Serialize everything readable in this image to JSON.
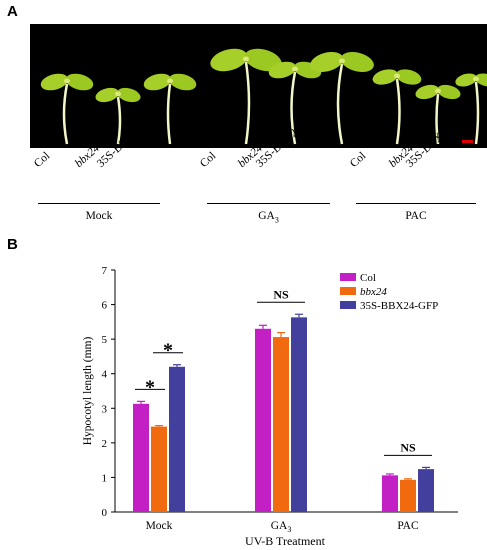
{
  "panel_a": {
    "letter": "A",
    "groups": [
      {
        "treatment": "Mock",
        "treatment_sub": "",
        "genotypes": [
          {
            "label": "Col",
            "italic": false
          },
          {
            "label": "bbx24",
            "italic": true
          },
          {
            "label": "35S-BBX24-GFP",
            "italic": false
          }
        ]
      },
      {
        "treatment": "GA",
        "treatment_sub": "3",
        "genotypes": [
          {
            "label": "Col",
            "italic": false
          },
          {
            "label": "bbx24",
            "italic": true
          },
          {
            "label": "35S-BBX24-GFP",
            "italic": false
          }
        ]
      },
      {
        "treatment": "PAC",
        "treatment_sub": "",
        "genotypes": [
          {
            "label": "Col",
            "italic": false
          },
          {
            "label": "bbx24",
            "italic": true
          },
          {
            "label": "35S-BBX24-GFP",
            "italic": false
          }
        ]
      }
    ],
    "scale_bar_color": "#e00000"
  },
  "panel_b": {
    "letter": "B"
  },
  "chart_data": {
    "type": "bar",
    "categories": [
      "Mock",
      "GA",
      "PAC"
    ],
    "category_subscripts": [
      "",
      "3",
      ""
    ],
    "series": [
      {
        "name": "Col",
        "italic": false,
        "color": "#c21fc4",
        "values": [
          3.13,
          5.3,
          1.06
        ],
        "errors": [
          0.07,
          0.1,
          0.04
        ]
      },
      {
        "name": "bbx24",
        "italic": true,
        "color": "#f26a10",
        "values": [
          2.47,
          5.06,
          0.93
        ],
        "errors": [
          0.03,
          0.13,
          0.03
        ]
      },
      {
        "name": "35S-BBX24-GFP",
        "italic": false,
        "color": "#433f9c",
        "values": [
          4.2,
          5.63,
          1.24
        ],
        "errors": [
          0.06,
          0.09,
          0.05
        ]
      }
    ],
    "xlabel": "UV-B Treatment",
    "ylabel": "Hypocotyl length (mm)",
    "ylim": [
      0,
      7
    ],
    "yticks": [
      0,
      1,
      2,
      3,
      4,
      5,
      6,
      7
    ],
    "legend_position": "top-right",
    "annotations": [
      {
        "text": "*",
        "category": "Mock",
        "between": [
          "Col",
          "bbx24"
        ]
      },
      {
        "text": "*",
        "category": "Mock",
        "between": [
          "bbx24",
          "35S-BBX24-GFP"
        ]
      },
      {
        "text": "NS",
        "category": "GA",
        "between": [
          "Col",
          "35S-BBX24-GFP"
        ]
      },
      {
        "text": "NS",
        "category": "PAC",
        "between": [
          "Col",
          "35S-BBX24-GFP"
        ]
      }
    ]
  }
}
